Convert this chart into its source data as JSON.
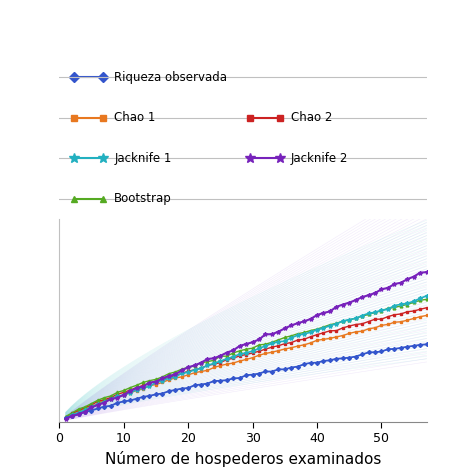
{
  "xlabel": "Número de hospederos examinados",
  "xlim": [
    0,
    57
  ],
  "ylim": [
    0,
    170
  ],
  "xticks": [
    0,
    10,
    20,
    30,
    40,
    50
  ],
  "n_samples": 57,
  "colors": {
    "obs": "#3355cc",
    "chao1": "#e87820",
    "chao2": "#cc2222",
    "jk1": "#22b0c0",
    "jk2": "#7722bb",
    "boot": "#55aa22"
  },
  "fan_jk2_color": "#c8aaee",
  "fan_jk1_color": "#88dddd",
  "background_color": "#ffffff",
  "grid_color": "#c0c0c0"
}
